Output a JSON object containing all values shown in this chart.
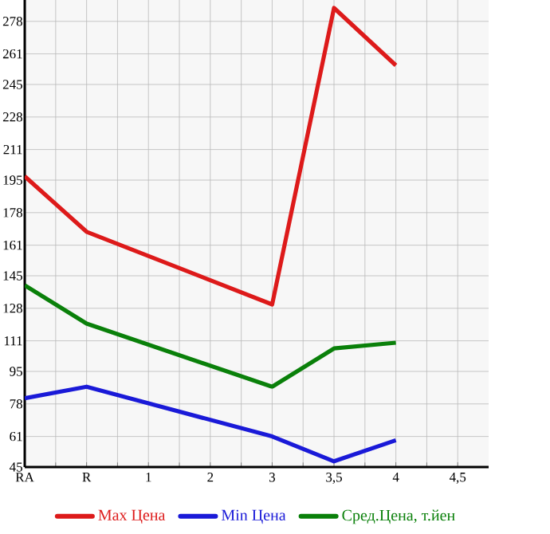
{
  "chart_data": {
    "type": "line",
    "categories": [
      "RA",
      "R",
      "1",
      "2",
      "3",
      "3,5",
      "4",
      "4,5"
    ],
    "series": [
      {
        "name": "Max Цена",
        "color": "#dd1a1a",
        "values": [
          197,
          168,
          null,
          null,
          130,
          285,
          255,
          null
        ]
      },
      {
        "name": "Min Цена",
        "color": "#1a1ad8",
        "values": [
          81,
          87,
          null,
          null,
          61,
          48,
          59,
          null
        ]
      },
      {
        "name": "Сред.Цена, т.йен",
        "color": "#0a800a",
        "values": [
          140,
          120,
          null,
          null,
          87,
          107,
          110,
          null
        ]
      }
    ],
    "ylim": [
      45,
      295
    ],
    "yticks": [
      45,
      61,
      78,
      95,
      111,
      128,
      145,
      161,
      178,
      195,
      211,
      228,
      245,
      261,
      278
    ],
    "grid": true,
    "legend": "bottom"
  }
}
